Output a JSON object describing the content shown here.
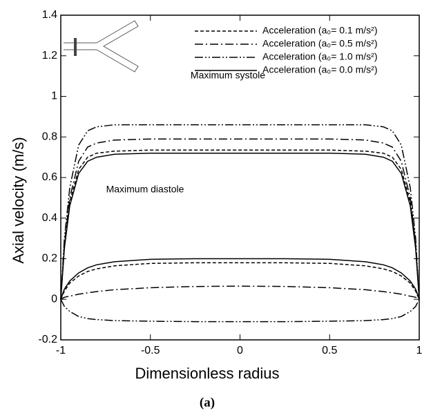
{
  "chart_data": {
    "type": "line",
    "y_label": "Axial velocity (m/s)",
    "x_label": "Dimensionless radius",
    "caption": "(a)",
    "annotations": [
      "Maximum systole",
      "Maximum diastole"
    ],
    "x": [
      -1,
      -0.98,
      -0.95,
      -0.9,
      -0.85,
      -0.8,
      -0.7,
      -0.5,
      -0.25,
      0,
      0.25,
      0.5,
      0.7,
      0.8,
      0.85,
      0.9,
      0.95,
      0.98,
      1
    ],
    "xlim": [
      -1,
      1
    ],
    "xticks": [
      -1,
      -0.5,
      0,
      0.5,
      1
    ],
    "ylim": [
      -0.2,
      1.4
    ],
    "yticks": [
      -0.2,
      0,
      0.2,
      0.4,
      0.6,
      0.8,
      1,
      1.2,
      1.4
    ],
    "series": [
      {
        "name": "Acceleration (a₀= 0.1 m/s²)",
        "color": "#000000",
        "dash": "5,3",
        "systole": [
          0,
          0.26,
          0.48,
          0.64,
          0.7,
          0.72,
          0.73,
          0.735,
          0.735,
          0.735,
          0.735,
          0.735,
          0.73,
          0.72,
          0.7,
          0.64,
          0.48,
          0.26,
          0
        ],
        "diastole": [
          0,
          0.04,
          0.08,
          0.115,
          0.137,
          0.15,
          0.165,
          0.177,
          0.18,
          0.18,
          0.18,
          0.177,
          0.165,
          0.15,
          0.137,
          0.115,
          0.08,
          0.04,
          0
        ]
      },
      {
        "name": "Acceleration (a₀= 0.5 m/s²)",
        "color": "#000000",
        "dash": "12,4,2,4",
        "systole": [
          0,
          0.27,
          0.5,
          0.68,
          0.75,
          0.77,
          0.785,
          0.79,
          0.79,
          0.79,
          0.79,
          0.79,
          0.785,
          0.77,
          0.75,
          0.68,
          0.5,
          0.27,
          0
        ],
        "diastole": [
          0,
          0.01,
          0.015,
          0.025,
          0.032,
          0.038,
          0.047,
          0.057,
          0.063,
          0.065,
          0.063,
          0.057,
          0.047,
          0.038,
          0.032,
          0.025,
          0.015,
          0.01,
          0
        ]
      },
      {
        "name": "Acceleration (a₀= 1.0 m/s²)",
        "color": "#000000",
        "dash": "12,3,2,3,2,3",
        "systole": [
          0,
          0.3,
          0.55,
          0.76,
          0.83,
          0.85,
          0.86,
          0.86,
          0.86,
          0.86,
          0.86,
          0.86,
          0.86,
          0.85,
          0.83,
          0.76,
          0.55,
          0.3,
          0
        ],
        "diastole": [
          0,
          -0.035,
          -0.06,
          -0.085,
          -0.095,
          -0.1,
          -0.105,
          -0.108,
          -0.11,
          -0.11,
          -0.11,
          -0.108,
          -0.105,
          -0.1,
          -0.095,
          -0.085,
          -0.06,
          -0.035,
          0
        ]
      },
      {
        "name": "Acceleration (a₀= 0.0 m/s²)",
        "color": "#000000",
        "dash": "none",
        "systole": [
          0,
          0.25,
          0.46,
          0.62,
          0.68,
          0.7,
          0.715,
          0.72,
          0.72,
          0.72,
          0.72,
          0.72,
          0.715,
          0.7,
          0.68,
          0.62,
          0.46,
          0.25,
          0
        ],
        "diastole": [
          0,
          0.05,
          0.09,
          0.13,
          0.155,
          0.17,
          0.185,
          0.197,
          0.2,
          0.2,
          0.2,
          0.197,
          0.185,
          0.17,
          0.155,
          0.13,
          0.09,
          0.05,
          0
        ]
      }
    ]
  }
}
